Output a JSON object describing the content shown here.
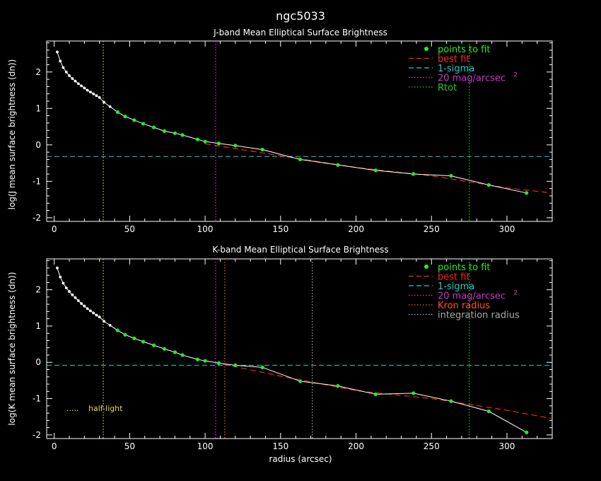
{
  "figure": {
    "title": "ngc5033",
    "xlabel": "radius (arcsec)"
  },
  "colors": {
    "background": "#000000",
    "axes": "#ffffff",
    "data": "#ffffff",
    "fit_points": "#22ee22",
    "best_fit": "#ff2222",
    "sigma": "#22cccc",
    "mag20": "#cc33cc",
    "rtot": "#22cc22",
    "half_light": "#dddd22",
    "kron": "#ff5522",
    "integration": "#aaaaaa"
  },
  "chart_data": [
    {
      "type": "line",
      "title": "J-band Mean Elliptical Surface Brightness",
      "xlabel": "",
      "ylabel": "log(J mean surface brightness (dn))",
      "xlim": [
        -5,
        330
      ],
      "ylim": [
        -2.1,
        2.85
      ],
      "xticks": [
        0,
        50,
        100,
        150,
        200,
        250,
        300
      ],
      "yticks": [
        -2,
        -1,
        0,
        1,
        2
      ],
      "grid": false,
      "legend_position": "top-right",
      "legend": [
        {
          "label": "points to fit",
          "style": "dot",
          "color": "#22ee22"
        },
        {
          "label": "best fit",
          "style": "dash",
          "color": "#ff2222"
        },
        {
          "label": "1-sigma",
          "style": "dash",
          "color": "#22cccc"
        },
        {
          "label": "20 mag/arcsec",
          "sup": "2",
          "style": "dot-line",
          "color": "#cc33cc"
        },
        {
          "label": "Rtot",
          "style": "dot-line",
          "color": "#22cc22"
        }
      ],
      "series": [
        {
          "role": "profile",
          "x": [
            2,
            4,
            6,
            8,
            10,
            12,
            14,
            16,
            18,
            20,
            22,
            24,
            26,
            28,
            30,
            33,
            37,
            42,
            47,
            53,
            59,
            66,
            73,
            80,
            85,
            95,
            100,
            109,
            120,
            138,
            163,
            188,
            213,
            238,
            263,
            288,
            313
          ],
          "y": [
            2.55,
            2.3,
            2.12,
            2.0,
            1.9,
            1.82,
            1.75,
            1.68,
            1.62,
            1.56,
            1.5,
            1.45,
            1.4,
            1.35,
            1.3,
            1.17,
            1.05,
            0.9,
            0.78,
            0.68,
            0.58,
            0.48,
            0.38,
            0.32,
            0.27,
            0.15,
            0.09,
            0.04,
            -0.02,
            -0.13,
            -0.4,
            -0.55,
            -0.7,
            -0.8,
            -0.85,
            -1.1,
            -1.32
          ]
        },
        {
          "role": "points_to_fit",
          "x": [
            42,
            47,
            53,
            59,
            66,
            73,
            80,
            85,
            95,
            100,
            109,
            120,
            138,
            163,
            188,
            213,
            238,
            263,
            288,
            313
          ],
          "y": [
            0.9,
            0.78,
            0.68,
            0.58,
            0.48,
            0.38,
            0.32,
            0.27,
            0.15,
            0.09,
            0.04,
            -0.02,
            -0.13,
            -0.4,
            -0.55,
            -0.7,
            -0.8,
            -0.85,
            -1.1,
            -1.32
          ]
        },
        {
          "role": "best_fit",
          "x": [
            100,
            150,
            200,
            250,
            300,
            330
          ],
          "y": [
            0.03,
            -0.3,
            -0.62,
            -0.85,
            -1.18,
            -1.32
          ]
        }
      ],
      "hlines": [
        {
          "role": "sigma",
          "y": -0.32
        }
      ],
      "vlines": [
        {
          "role": "half_light",
          "x": 32.5
        },
        {
          "role": "mag20",
          "x": 107
        },
        {
          "role": "rtot",
          "x": 275
        }
      ],
      "annotations": []
    },
    {
      "type": "line",
      "title": "K-band Mean Elliptical Surface Brightness",
      "xlabel": "radius (arcsec)",
      "ylabel": "log(K mean surface brightness (dn))",
      "xlim": [
        -5,
        330
      ],
      "ylim": [
        -2.1,
        2.85
      ],
      "xticks": [
        0,
        50,
        100,
        150,
        200,
        250,
        300
      ],
      "yticks": [
        -2,
        -1,
        0,
        1,
        2
      ],
      "grid": false,
      "legend_position": "top-right",
      "legend": [
        {
          "label": "points to fit",
          "style": "dot",
          "color": "#22ee22"
        },
        {
          "label": "best fit",
          "style": "dash",
          "color": "#ff2222"
        },
        {
          "label": "1-sigma",
          "style": "dash",
          "color": "#22cccc"
        },
        {
          "label": "20 mag/arcsec",
          "sup": "2",
          "style": "dot-line",
          "color": "#cc33cc"
        },
        {
          "label": "Kron radius",
          "style": "dot-line",
          "color": "#ff5522"
        },
        {
          "label": "integration radius",
          "style": "dot-line",
          "color": "#aaaaaa"
        }
      ],
      "series": [
        {
          "role": "profile",
          "x": [
            2,
            4,
            6,
            8,
            10,
            12,
            14,
            16,
            18,
            20,
            22,
            24,
            26,
            28,
            30,
            33,
            37,
            42,
            47,
            53,
            59,
            66,
            73,
            80,
            85,
            95,
            100,
            109,
            120,
            138,
            163,
            188,
            213,
            238,
            263,
            288,
            313
          ],
          "y": [
            2.6,
            2.35,
            2.18,
            2.05,
            1.95,
            1.86,
            1.78,
            1.7,
            1.62,
            1.55,
            1.48,
            1.42,
            1.36,
            1.3,
            1.25,
            1.13,
            1.02,
            0.88,
            0.76,
            0.66,
            0.57,
            0.47,
            0.37,
            0.28,
            0.2,
            0.08,
            0.04,
            -0.02,
            -0.08,
            -0.14,
            -0.52,
            -0.65,
            -0.88,
            -0.85,
            -1.07,
            -1.35,
            -1.93
          ]
        },
        {
          "role": "points_to_fit",
          "x": [
            42,
            47,
            53,
            59,
            66,
            73,
            80,
            85,
            95,
            100,
            109,
            120,
            138,
            163,
            188,
            213,
            238,
            263,
            288,
            313
          ],
          "y": [
            0.88,
            0.76,
            0.66,
            0.57,
            0.47,
            0.37,
            0.28,
            0.2,
            0.08,
            0.04,
            -0.02,
            -0.08,
            -0.14,
            -0.52,
            -0.65,
            -0.88,
            -0.85,
            -1.07,
            -1.35,
            -1.93
          ]
        },
        {
          "role": "best_fit",
          "x": [
            100,
            150,
            200,
            250,
            300,
            330
          ],
          "y": [
            0.05,
            -0.38,
            -0.78,
            -1.0,
            -1.32,
            -1.55
          ]
        }
      ],
      "hlines": [
        {
          "role": "sigma",
          "y": -0.08
        }
      ],
      "vlines": [
        {
          "role": "half_light",
          "x": 32.5
        },
        {
          "role": "mag20",
          "x": 107
        },
        {
          "role": "kron",
          "x": 113
        },
        {
          "role": "integration",
          "x": 171
        },
        {
          "role": "rtot",
          "x": 275
        }
      ],
      "annotations": [
        {
          "role": "half_light",
          "label": "half-light",
          "marker": "....."
        }
      ]
    }
  ]
}
